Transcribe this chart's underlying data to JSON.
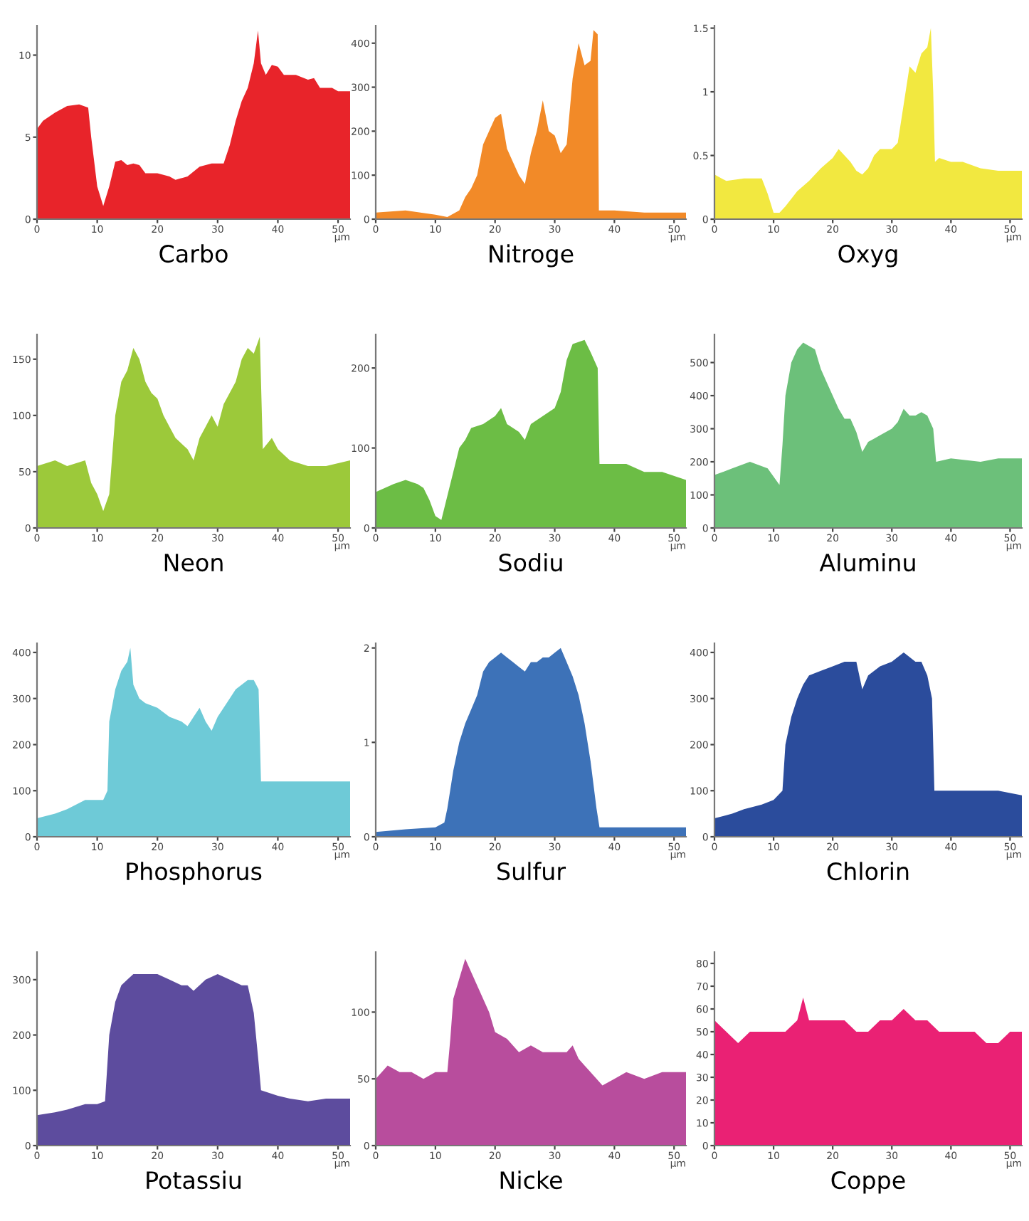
{
  "chart_data": [
    {
      "type": "area",
      "title": "Carbo",
      "xlabel": "µm",
      "color": "#e8242a",
      "xlim": [
        0,
        52
      ],
      "ylim": [
        0,
        11.8
      ],
      "xticks": [
        0,
        10,
        20,
        30,
        40,
        50
      ],
      "yticks": [
        0,
        5,
        10
      ],
      "grid": false,
      "legend": false,
      "x": [
        0,
        1,
        3,
        5,
        7,
        8.5,
        9,
        10,
        11,
        12,
        13,
        14,
        15,
        16,
        17,
        18,
        20,
        22,
        23,
        25,
        27,
        29,
        31,
        32,
        33,
        34,
        35,
        36,
        36.7,
        37.2,
        38,
        39,
        40,
        41,
        43,
        45,
        46,
        47,
        49,
        50,
        52
      ],
      "values": [
        5.5,
        6,
        6.5,
        6.9,
        7,
        6.8,
        5,
        2,
        0.8,
        2,
        3.5,
        3.6,
        3.3,
        3.4,
        3.3,
        2.8,
        2.8,
        2.6,
        2.4,
        2.6,
        3.2,
        3.4,
        3.4,
        4.5,
        6,
        7.2,
        8,
        9.5,
        11.5,
        9.5,
        8.8,
        9.4,
        9.3,
        8.8,
        8.8,
        8.5,
        8.6,
        8,
        8,
        7.8,
        7.8
      ]
    },
    {
      "type": "area",
      "title": "Nitroge",
      "xlabel": "µm",
      "color": "#f28a28",
      "xlim": [
        0,
        52
      ],
      "ylim": [
        0,
        440
      ],
      "xticks": [
        0,
        10,
        20,
        30,
        40,
        50
      ],
      "yticks": [
        0,
        100,
        200,
        300,
        400
      ],
      "grid": false,
      "legend": false,
      "x": [
        0,
        5,
        10,
        12,
        14,
        15,
        16,
        17,
        18,
        19,
        20,
        21,
        22,
        23,
        24,
        25,
        26,
        27,
        28,
        29,
        30,
        31,
        32,
        33,
        34,
        35,
        36,
        36.5,
        37.2,
        37.4,
        40,
        45,
        52
      ],
      "values": [
        15,
        20,
        10,
        5,
        20,
        50,
        70,
        100,
        170,
        200,
        230,
        240,
        160,
        130,
        100,
        80,
        150,
        200,
        270,
        200,
        190,
        150,
        170,
        320,
        400,
        350,
        360,
        430,
        420,
        20,
        20,
        15,
        15
      ]
    },
    {
      "type": "area",
      "title": "Oxyg",
      "xlabel": "µm",
      "color": "#f2e840",
      "xlim": [
        0,
        52
      ],
      "ylim": [
        0,
        1.52
      ],
      "xticks": [
        0,
        10,
        20,
        30,
        40,
        50
      ],
      "yticks": [
        0,
        0.5,
        1,
        1.5
      ],
      "grid": false,
      "legend": false,
      "x": [
        0,
        2,
        5,
        8,
        9,
        10,
        11,
        12,
        14,
        16,
        18,
        20,
        21,
        22,
        23,
        24,
        25,
        26,
        27,
        28,
        30,
        31,
        32,
        33,
        34,
        35,
        36,
        36.6,
        37,
        37.3,
        38,
        40,
        42,
        45,
        48,
        52
      ],
      "values": [
        0.35,
        0.3,
        0.32,
        0.32,
        0.2,
        0.05,
        0.05,
        0.1,
        0.22,
        0.3,
        0.4,
        0.48,
        0.55,
        0.5,
        0.45,
        0.38,
        0.35,
        0.4,
        0.5,
        0.55,
        0.55,
        0.6,
        0.9,
        1.2,
        1.15,
        1.3,
        1.35,
        1.5,
        1.0,
        0.45,
        0.48,
        0.45,
        0.45,
        0.4,
        0.38,
        0.38
      ]
    },
    {
      "type": "area",
      "title": "Neon",
      "xlabel": "µm",
      "color": "#9cc93a",
      "xlim": [
        0,
        52
      ],
      "ylim": [
        0,
        172
      ],
      "xticks": [
        0,
        10,
        20,
        30,
        40,
        50
      ],
      "yticks": [
        0,
        50,
        100,
        150
      ],
      "grid": false,
      "legend": false,
      "x": [
        0,
        3,
        5,
        8,
        9,
        10,
        11,
        12,
        13,
        14,
        15,
        16,
        17,
        18,
        19,
        20,
        21,
        22,
        23,
        25,
        26,
        27,
        28,
        29,
        30,
        31,
        32,
        33,
        34,
        35,
        36,
        37,
        37.5,
        39,
        40,
        42,
        45,
        48,
        52
      ],
      "values": [
        55,
        60,
        55,
        60,
        40,
        30,
        15,
        30,
        100,
        130,
        140,
        160,
        150,
        130,
        120,
        115,
        100,
        90,
        80,
        70,
        60,
        80,
        90,
        100,
        90,
        110,
        120,
        130,
        150,
        160,
        155,
        170,
        70,
        80,
        70,
        60,
        55,
        55,
        60
      ]
    },
    {
      "type": "area",
      "title": "Sodiu",
      "xlabel": "µm",
      "color": "#6cbd45",
      "xlim": [
        0,
        52
      ],
      "ylim": [
        0,
        242
      ],
      "xticks": [
        0,
        10,
        20,
        30,
        40,
        50
      ],
      "yticks": [
        0,
        100,
        200
      ],
      "grid": false,
      "legend": false,
      "x": [
        0,
        3,
        5,
        7,
        8,
        9,
        10,
        11,
        12,
        13,
        14,
        15,
        16,
        18,
        20,
        21,
        22,
        24,
        25,
        26,
        28,
        30,
        31,
        32,
        33,
        35,
        36,
        37.2,
        37.5,
        40,
        42,
        45,
        48,
        52
      ],
      "values": [
        45,
        55,
        60,
        55,
        50,
        35,
        15,
        10,
        40,
        70,
        100,
        110,
        125,
        130,
        140,
        150,
        130,
        120,
        110,
        130,
        140,
        150,
        170,
        210,
        230,
        235,
        220,
        200,
        80,
        80,
        80,
        70,
        70,
        60
      ]
    },
    {
      "type": "area",
      "title": "Aluminu",
      "xlabel": "µm",
      "color": "#6cc07a",
      "xlim": [
        0,
        52
      ],
      "ylim": [
        0,
        585
      ],
      "xticks": [
        0,
        10,
        20,
        30,
        40,
        50
      ],
      "yticks": [
        0,
        100,
        200,
        300,
        400,
        500
      ],
      "grid": false,
      "legend": false,
      "x": [
        0,
        3,
        6,
        9,
        11,
        11.5,
        12,
        13,
        14,
        15,
        16,
        17,
        18,
        19,
        20,
        21,
        22,
        23,
        24,
        25,
        26,
        27,
        28,
        30,
        31,
        32,
        33,
        34,
        35,
        36,
        37,
        37.5,
        40,
        45,
        48,
        52
      ],
      "values": [
        160,
        180,
        200,
        180,
        130,
        250,
        400,
        500,
        540,
        560,
        550,
        540,
        480,
        440,
        400,
        360,
        330,
        330,
        290,
        230,
        260,
        270,
        280,
        300,
        320,
        360,
        340,
        340,
        350,
        340,
        300,
        200,
        210,
        200,
        210,
        210
      ]
    },
    {
      "type": "area",
      "title": "Phosphorus",
      "xlabel": "µm",
      "color": "#6ecad7",
      "xlim": [
        0,
        52
      ],
      "ylim": [
        0,
        420
      ],
      "xticks": [
        0,
        10,
        20,
        30,
        40,
        50
      ],
      "yticks": [
        0,
        100,
        200,
        300,
        400
      ],
      "grid": false,
      "legend": false,
      "x": [
        0,
        3,
        5,
        8,
        11,
        11.7,
        12,
        13,
        14,
        15,
        15.5,
        16,
        17,
        18,
        20,
        22,
        24,
        25,
        26,
        27,
        28,
        29,
        30,
        32,
        33,
        34,
        35,
        36,
        36.8,
        37.2,
        40,
        45,
        48,
        52
      ],
      "values": [
        40,
        50,
        60,
        80,
        80,
        100,
        250,
        320,
        360,
        380,
        410,
        330,
        300,
        290,
        280,
        260,
        250,
        240,
        260,
        280,
        250,
        230,
        260,
        300,
        320,
        330,
        340,
        340,
        320,
        120,
        120,
        120,
        120,
        120
      ]
    },
    {
      "type": "area",
      "title": "Sulfur",
      "xlabel": "µm",
      "color": "#3d72b8",
      "xlim": [
        0,
        52
      ],
      "ylim": [
        0,
        2.05
      ],
      "xticks": [
        0,
        10,
        20,
        30,
        40,
        50
      ],
      "yticks": [
        0,
        1,
        2
      ],
      "grid": false,
      "legend": false,
      "x": [
        0,
        5,
        10,
        11.5,
        12,
        13,
        14,
        15,
        16,
        17,
        18,
        19,
        20,
        21,
        22,
        23,
        24,
        25,
        26,
        27,
        28,
        29,
        30,
        31,
        32,
        33,
        34,
        35,
        36,
        37,
        37.5,
        40,
        45,
        52
      ],
      "values": [
        0.05,
        0.08,
        0.1,
        0.15,
        0.3,
        0.7,
        1.0,
        1.2,
        1.35,
        1.5,
        1.75,
        1.85,
        1.9,
        1.95,
        1.9,
        1.85,
        1.8,
        1.75,
        1.85,
        1.85,
        1.9,
        1.9,
        1.95,
        2.0,
        1.85,
        1.7,
        1.5,
        1.2,
        0.8,
        0.3,
        0.1,
        0.1,
        0.1,
        0.1
      ]
    },
    {
      "type": "area",
      "title": "Chlorin",
      "xlabel": "µm",
      "color": "#2b4c9c",
      "xlim": [
        0,
        52
      ],
      "ylim": [
        0,
        420
      ],
      "xticks": [
        0,
        10,
        20,
        30,
        40,
        50
      ],
      "yticks": [
        0,
        100,
        200,
        300,
        400
      ],
      "grid": false,
      "legend": false,
      "x": [
        0,
        3,
        5,
        8,
        10,
        11.5,
        12,
        13,
        14,
        15,
        16,
        18,
        20,
        22,
        24,
        25,
        26,
        28,
        30,
        31,
        32,
        34,
        35,
        36,
        36.8,
        37.2,
        40,
        45,
        48,
        52
      ],
      "values": [
        40,
        50,
        60,
        70,
        80,
        100,
        200,
        260,
        300,
        330,
        350,
        360,
        370,
        380,
        380,
        320,
        350,
        370,
        380,
        390,
        400,
        380,
        380,
        350,
        300,
        100,
        100,
        100,
        100,
        90
      ]
    },
    {
      "type": "area",
      "title": "Potassiu",
      "xlabel": "µm",
      "color": "#5d4c9e",
      "xlim": [
        0,
        52
      ],
      "ylim": [
        0,
        350
      ],
      "xticks": [
        0,
        10,
        20,
        30,
        40,
        50
      ],
      "yticks": [
        0,
        100,
        200,
        300
      ],
      "grid": false,
      "legend": false,
      "x": [
        0,
        3,
        5,
        8,
        10,
        11.3,
        12,
        13,
        14,
        15,
        16,
        18,
        20,
        22,
        24,
        25,
        26,
        28,
        30,
        32,
        34,
        35,
        36,
        36.8,
        37.2,
        40,
        42,
        45,
        48,
        52
      ],
      "values": [
        55,
        60,
        65,
        75,
        75,
        80,
        200,
        260,
        290,
        300,
        310,
        310,
        310,
        300,
        290,
        290,
        280,
        300,
        310,
        300,
        290,
        290,
        240,
        150,
        100,
        90,
        85,
        80,
        85,
        85
      ]
    },
    {
      "type": "area",
      "title": "Nicke",
      "xlabel": "µm",
      "color": "#b84d9d",
      "xlim": [
        0,
        52
      ],
      "ylim": [
        0,
        145
      ],
      "xticks": [
        0,
        10,
        20,
        30,
        40,
        50
      ],
      "yticks": [
        0,
        50,
        100
      ],
      "grid": false,
      "legend": false,
      "x": [
        0,
        2,
        4,
        6,
        8,
        10,
        12,
        12.5,
        13,
        14,
        15,
        16,
        17,
        18,
        19,
        20,
        22,
        24,
        26,
        28,
        30,
        32,
        33,
        34,
        35,
        36,
        38,
        40,
        42,
        45,
        48,
        52
      ],
      "values": [
        50,
        60,
        55,
        55,
        50,
        55,
        55,
        80,
        110,
        125,
        140,
        130,
        120,
        110,
        100,
        85,
        80,
        70,
        75,
        70,
        70,
        70,
        75,
        65,
        60,
        55,
        45,
        50,
        55,
        50,
        55,
        55
      ]
    },
    {
      "type": "area",
      "title": "Coppe",
      "xlabel": "µm",
      "color": "#ea2174",
      "xlim": [
        0,
        52
      ],
      "ylim": [
        0,
        85
      ],
      "xticks": [
        0,
        10,
        20,
        30,
        40,
        50
      ],
      "yticks": [
        0,
        10,
        20,
        30,
        40,
        50,
        60,
        70,
        80
      ],
      "grid": false,
      "legend": false,
      "x": [
        0,
        2,
        4,
        6,
        8,
        10,
        12,
        14,
        15,
        16,
        18,
        20,
        22,
        24,
        26,
        28,
        30,
        32,
        34,
        36,
        38,
        40,
        42,
        44,
        46,
        48,
        50,
        52
      ],
      "values": [
        55,
        50,
        45,
        50,
        50,
        50,
        50,
        55,
        65,
        55,
        55,
        55,
        55,
        50,
        50,
        55,
        55,
        60,
        55,
        55,
        50,
        50,
        50,
        50,
        45,
        45,
        50,
        50
      ]
    }
  ]
}
